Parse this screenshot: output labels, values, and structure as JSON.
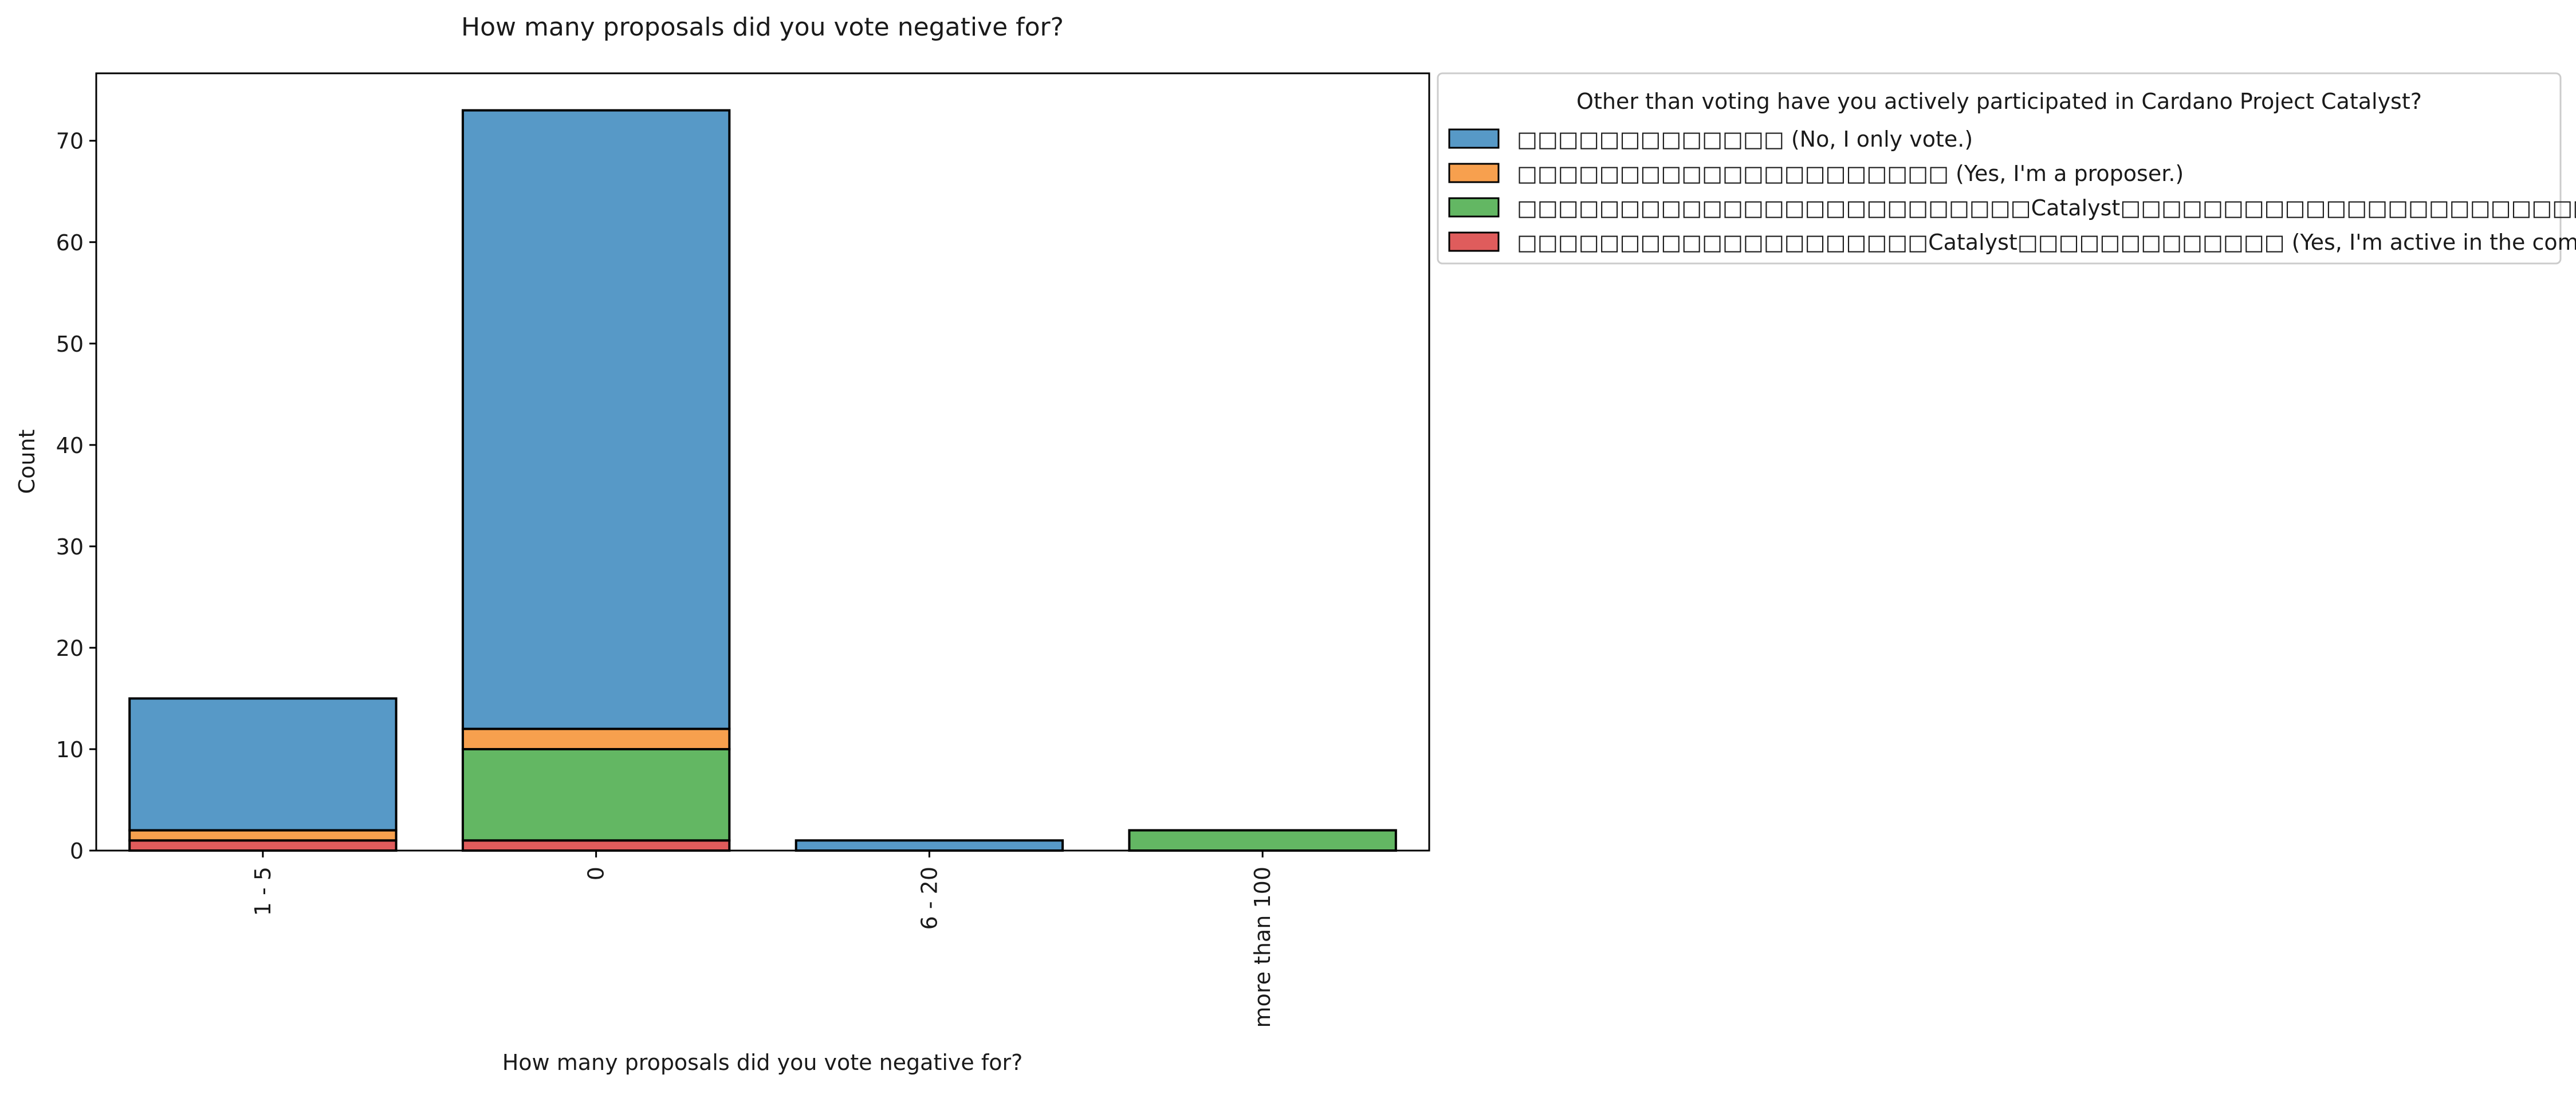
{
  "chart_data": {
    "type": "bar",
    "stacked": true,
    "title": "How many proposals did you vote negative for?",
    "xlabel": "How many proposals did you vote negative for?",
    "ylabel": "Count",
    "categories": [
      "1 - 5",
      "0",
      "6 - 20",
      "more than 100"
    ],
    "ylim": [
      0,
      76.65
    ],
    "yticks": [
      0,
      10,
      20,
      30,
      40,
      50,
      60,
      70
    ],
    "grid": false,
    "legend": {
      "title": "Other than voting have you actively participated in Cardano Project Catalyst?",
      "placement": "outside-top-right"
    },
    "series": [
      {
        "name": "□□□□□□□□□□□□□ (No, I only vote.)",
        "color": "#5799c7",
        "values": [
          13,
          61,
          1,
          0
        ]
      },
      {
        "name": "□□□□□□□□□□□□□□□□□□□□□ (Yes, I'm a proposer.)",
        "color": "#f7a04e",
        "values": [
          1,
          2,
          0,
          0
        ]
      },
      {
        "name": "□□□□□□□□□□□□□□□□□□□□□□□□□Catalyst□□□□□□□□□□□□□□□□□□□□□□□ (Yes, I'm a lurker in the community)",
        "color": "#63b763",
        "values": [
          0,
          9,
          0,
          2
        ]
      },
      {
        "name": "□□□□□□□□□□□□□□□□□□□□Catalyst□□□□□□□□□□□□□ (Yes, I'm active in the community.)",
        "color": "#df5c5c",
        "values": [
          1,
          1,
          0,
          0
        ]
      }
    ]
  }
}
